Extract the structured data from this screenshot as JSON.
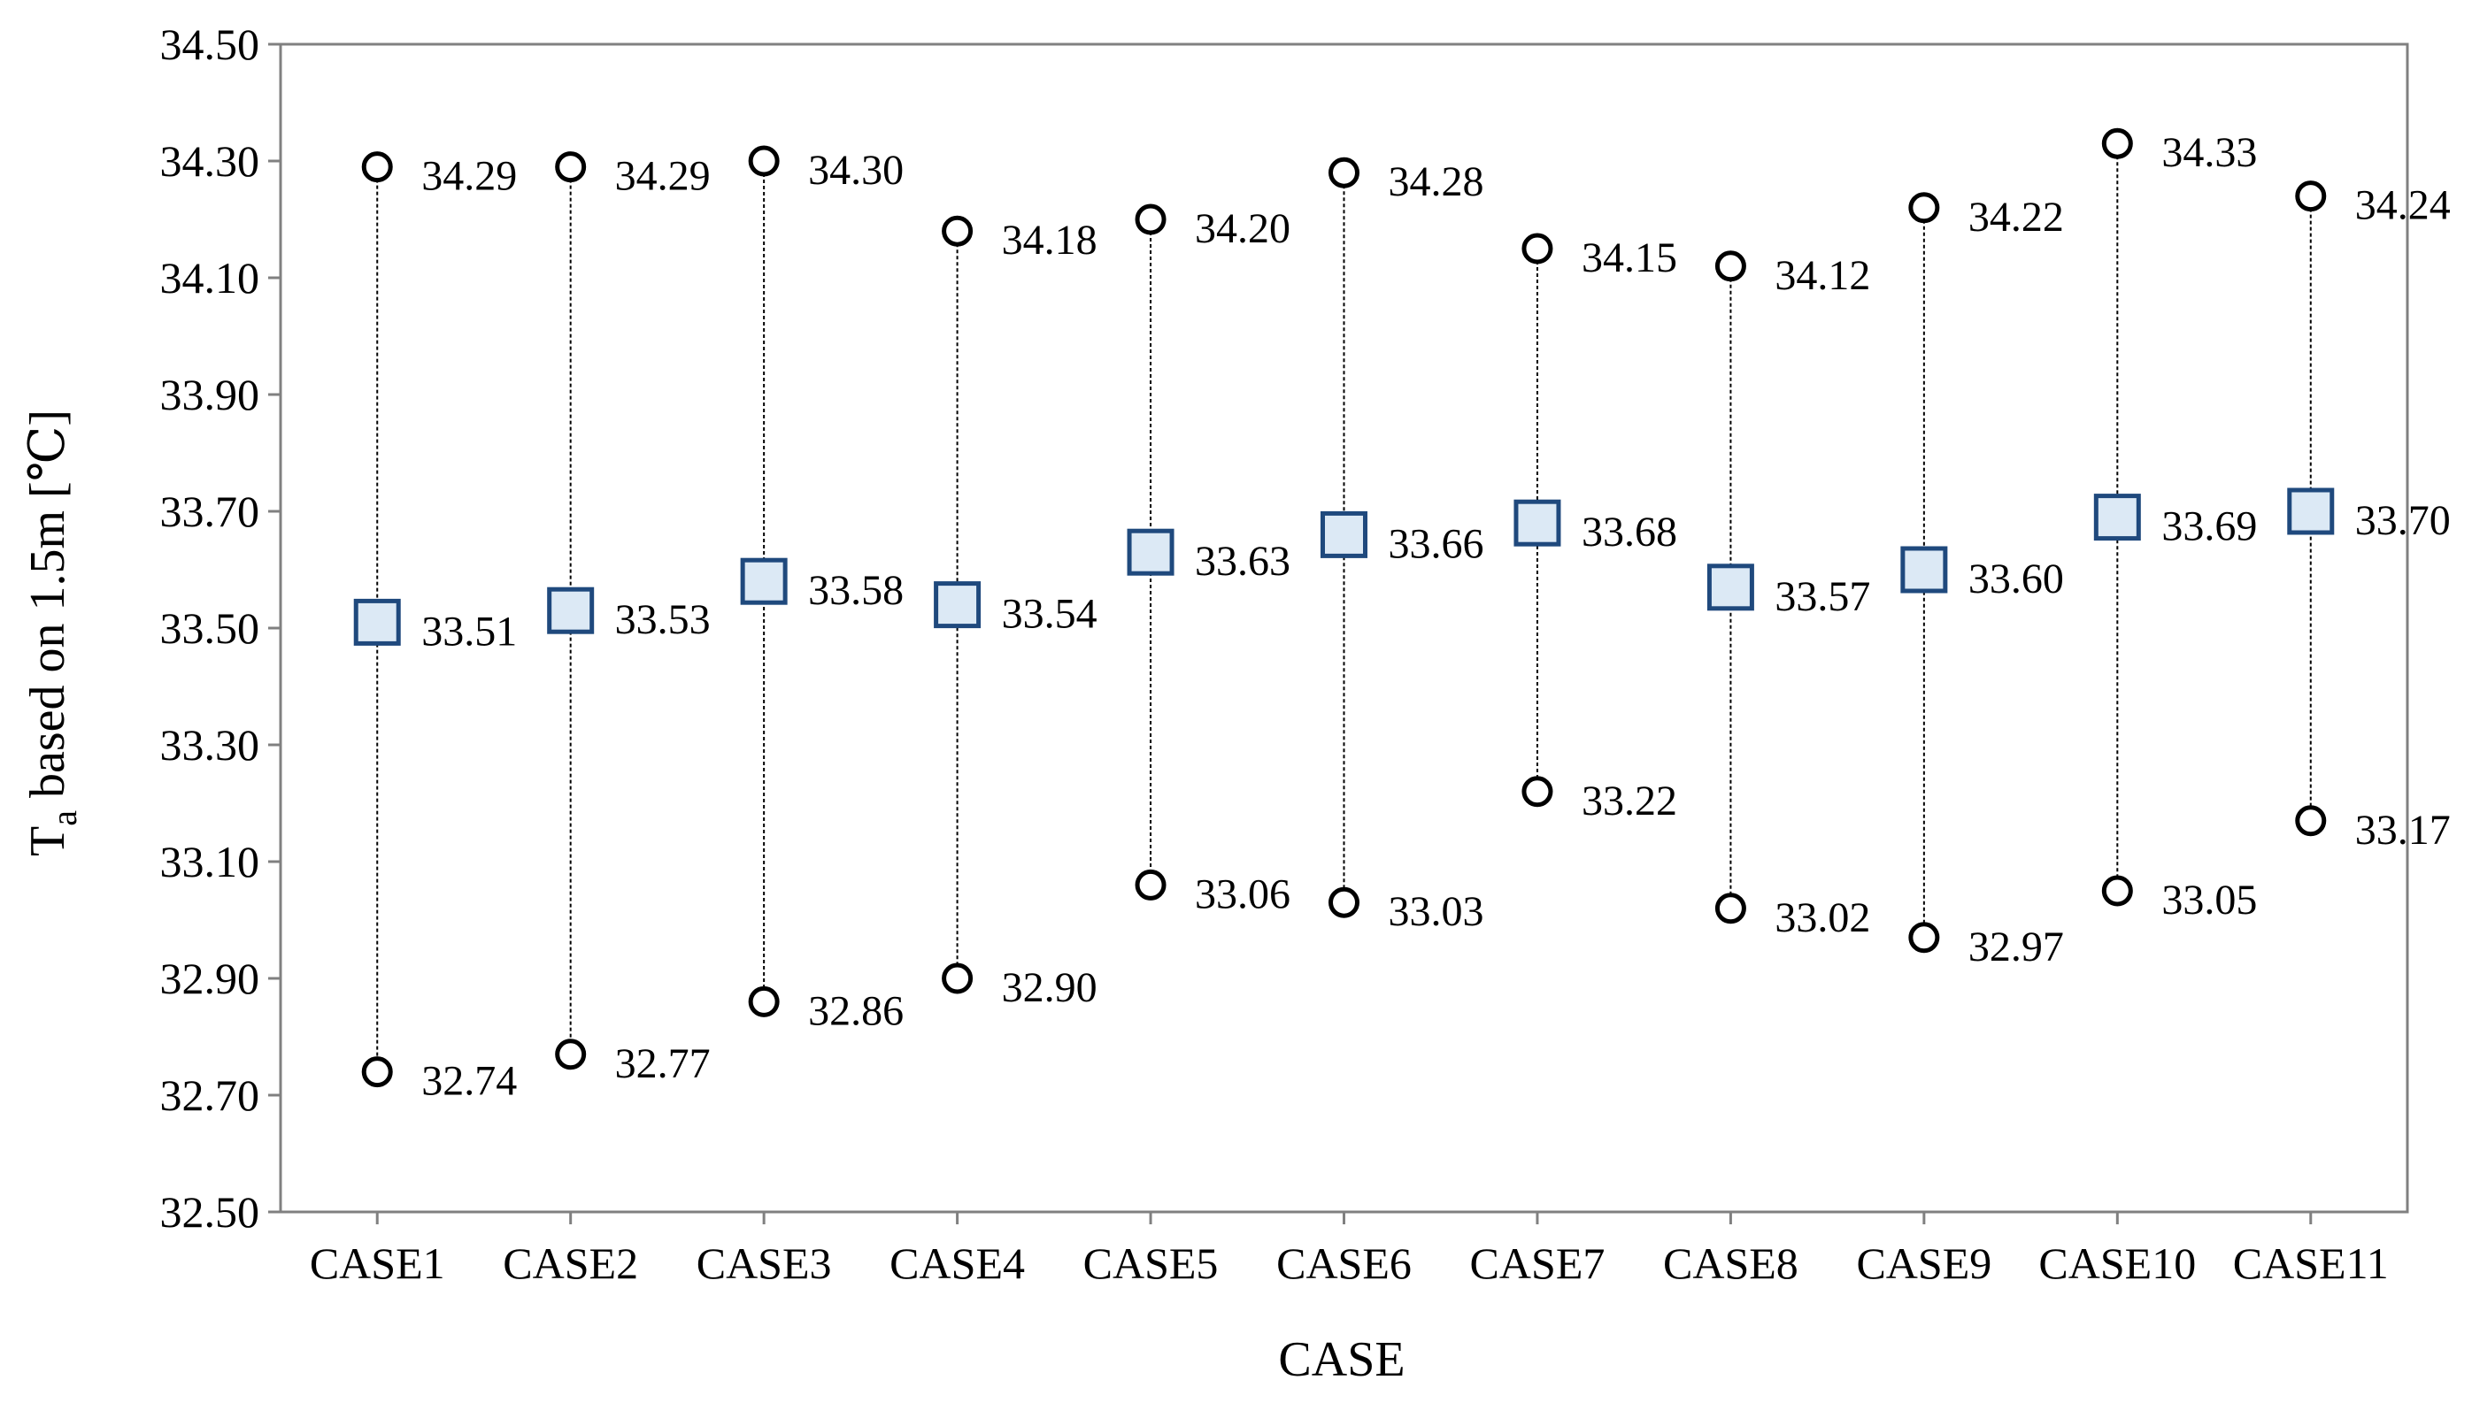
{
  "chart_data": {
    "type": "scatter",
    "title": "",
    "xlabel": "CASE",
    "ylabel_main": "T",
    "ylabel_sub": "a",
    "ylabel_rest": " based on 1.5m [℃]",
    "ylim": [
      32.5,
      34.5
    ],
    "yticks": [
      "32.50",
      "32.70",
      "32.90",
      "33.10",
      "33.30",
      "33.50",
      "33.70",
      "33.90",
      "34.10",
      "34.30",
      "34.50"
    ],
    "categories": [
      "CASE1",
      "CASE2",
      "CASE3",
      "CASE4",
      "CASE5",
      "CASE6",
      "CASE7",
      "CASE8",
      "CASE9",
      "CASE10",
      "CASE11"
    ],
    "max": [
      34.29,
      34.29,
      34.3,
      34.18,
      34.2,
      34.28,
      34.15,
      34.12,
      34.22,
      34.33,
      34.24
    ],
    "mean": [
      33.51,
      33.53,
      33.58,
      33.54,
      33.63,
      33.66,
      33.68,
      33.57,
      33.6,
      33.69,
      33.7
    ],
    "min": [
      32.74,
      32.77,
      32.86,
      32.9,
      33.06,
      33.03,
      33.22,
      33.02,
      32.97,
      33.05,
      33.17
    ],
    "max_labels": [
      "34.29",
      "34.29",
      "34.30",
      "34.18",
      "34.20",
      "34.28",
      "34.15",
      "34.12",
      "34.22",
      "34.33",
      "34.24"
    ],
    "mean_labels": [
      "33.51",
      "33.53",
      "33.58",
      "33.54",
      "33.63",
      "33.66",
      "33.68",
      "33.57",
      "33.60",
      "33.69",
      "33.70"
    ],
    "min_labels": [
      "32.74",
      "32.77",
      "32.86",
      "32.90",
      "33.06",
      "33.03",
      "33.22",
      "33.02",
      "32.97",
      "33.05",
      "33.17"
    ],
    "grid": false,
    "colors": {
      "mean_fill": "#dce9f5",
      "mean_stroke": "#1f497d",
      "marker_stroke": "#000000",
      "range_line": "#000000",
      "axis": "#808080"
    }
  }
}
